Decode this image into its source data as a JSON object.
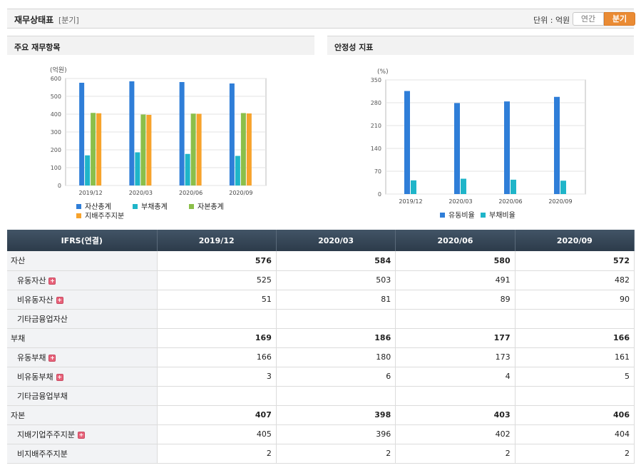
{
  "header": {
    "title": "재무상태표",
    "subtitle": "[분기]",
    "unit": "단위 : 억원",
    "tabs": [
      "연간",
      "분기"
    ],
    "active_tab": "분기"
  },
  "panels": {
    "left_title": "주요 재무항목",
    "right_title": "안정성 지표"
  },
  "colors": {
    "series1": "#2f7ed8",
    "series2": "#1fb5c9",
    "series3": "#8bbf4a",
    "series4": "#f7a32c",
    "header_bg": "#34465a",
    "tab_active": "#ea8b34"
  },
  "chart_data": [
    {
      "type": "bar",
      "ylabel": "(억원)",
      "ylim": [
        0,
        600
      ],
      "yticks": [
        0,
        100,
        200,
        300,
        400,
        500,
        600
      ],
      "categories": [
        "2019/12",
        "2020/03",
        "2020/06",
        "2020/09"
      ],
      "series": [
        {
          "name": "자산총계",
          "values": [
            576,
            584,
            580,
            572
          ]
        },
        {
          "name": "부채총계",
          "values": [
            169,
            186,
            177,
            166
          ]
        },
        {
          "name": "자본총계",
          "values": [
            407,
            398,
            403,
            406
          ]
        },
        {
          "name": "지배주주지분",
          "values": [
            405,
            396,
            402,
            404
          ]
        }
      ],
      "legend": "bottom",
      "grid": true
    },
    {
      "type": "bar",
      "ylabel": "(%)",
      "ylim": [
        0,
        350
      ],
      "yticks": [
        0,
        70,
        140,
        210,
        280,
        350
      ],
      "categories": [
        "2019/12",
        "2020/03",
        "2020/06",
        "2020/09"
      ],
      "series": [
        {
          "name": "유동비율",
          "values": [
            316,
            279,
            284,
            298
          ]
        },
        {
          "name": "부채비율",
          "values": [
            42,
            47,
            44,
            41
          ]
        }
      ],
      "legend": "bottom",
      "grid": true
    }
  ],
  "table": {
    "corner": "IFRS(연결)",
    "columns": [
      "2019/12",
      "2020/03",
      "2020/06",
      "2020/09"
    ],
    "rows": [
      {
        "label": "자산",
        "level": 0,
        "bold": true,
        "plus": false,
        "values": [
          "576",
          "584",
          "580",
          "572"
        ]
      },
      {
        "label": "유동자산",
        "level": 1,
        "bold": false,
        "plus": true,
        "values": [
          "525",
          "503",
          "491",
          "482"
        ]
      },
      {
        "label": "비유동자산",
        "level": 1,
        "bold": false,
        "plus": true,
        "values": [
          "51",
          "81",
          "89",
          "90"
        ]
      },
      {
        "label": "기타금융업자산",
        "level": 1,
        "bold": false,
        "plus": false,
        "values": [
          "",
          "",
          "",
          ""
        ]
      },
      {
        "label": "부채",
        "level": 0,
        "bold": true,
        "plus": false,
        "values": [
          "169",
          "186",
          "177",
          "166"
        ]
      },
      {
        "label": "유동부채",
        "level": 1,
        "bold": false,
        "plus": true,
        "values": [
          "166",
          "180",
          "173",
          "161"
        ]
      },
      {
        "label": "비유동부채",
        "level": 1,
        "bold": false,
        "plus": true,
        "values": [
          "3",
          "6",
          "4",
          "5"
        ]
      },
      {
        "label": "기타금융업부채",
        "level": 1,
        "bold": false,
        "plus": false,
        "values": [
          "",
          "",
          "",
          ""
        ]
      },
      {
        "label": "자본",
        "level": 0,
        "bold": true,
        "plus": false,
        "values": [
          "407",
          "398",
          "403",
          "406"
        ]
      },
      {
        "label": "지배기업주주지분",
        "level": 1,
        "bold": false,
        "plus": true,
        "values": [
          "405",
          "396",
          "402",
          "404"
        ]
      },
      {
        "label": "비지배주주지분",
        "level": 1,
        "bold": false,
        "plus": false,
        "values": [
          "2",
          "2",
          "2",
          "2"
        ]
      }
    ]
  }
}
